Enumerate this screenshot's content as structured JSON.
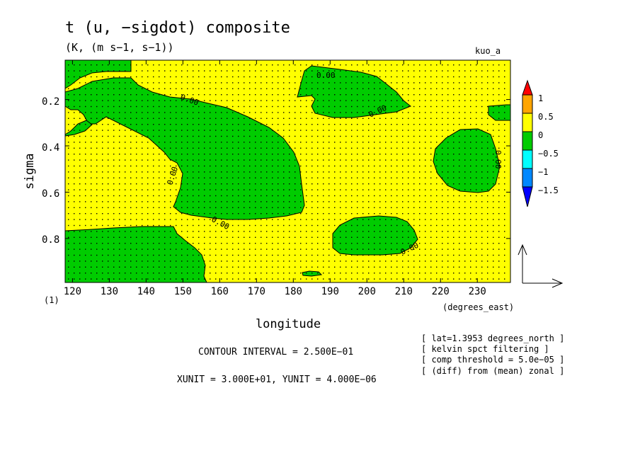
{
  "chart_data": {
    "type": "heatmap",
    "title": "t (u, −sigdot) composite",
    "subtitle": "(K, (m s−1, s−1))",
    "dataset": "kuo_a",
    "xlabel": "longitude",
    "xunits": "(degrees_east)",
    "ylabel": "sigma",
    "yunits_note": "(1)",
    "xlim": [
      118,
      239
    ],
    "ylim": [
      0.99,
      0.03
    ],
    "xticks": [
      120,
      130,
      140,
      150,
      160,
      170,
      180,
      190,
      200,
      210,
      220,
      230
    ],
    "yticks": [
      "0.2",
      "0.4",
      "0.6",
      "0.8"
    ],
    "colorbar": {
      "labels": [
        "1",
        "0.5",
        "0",
        "−0.5",
        "−1",
        "−1.5"
      ],
      "colors": [
        "#ff0000",
        "#ffa500",
        "#ffff00",
        "#00cc00",
        "#00ffff",
        "#0088ff",
        "#0000ff"
      ]
    },
    "contour_labels": [
      "0.00",
      "0.00",
      "0.00",
      "0.00",
      "0.00",
      "0.00",
      "0.00"
    ],
    "fill_colors": {
      "positive": "#ffff00",
      "negative": "#00cc00"
    },
    "footer": {
      "contour_interval": "CONTOUR INTERVAL = 2.500E−01",
      "units": "XUNIT = 3.000E+01, YUNIT = 4.000E−06"
    },
    "notes": [
      "[ lat=1.3953 degrees_north ]",
      "[ kelvin spct filtering ]",
      "[ comp threshold = 5.0e−05 ]",
      "[ (diff) from (mean) zonal ]"
    ]
  }
}
